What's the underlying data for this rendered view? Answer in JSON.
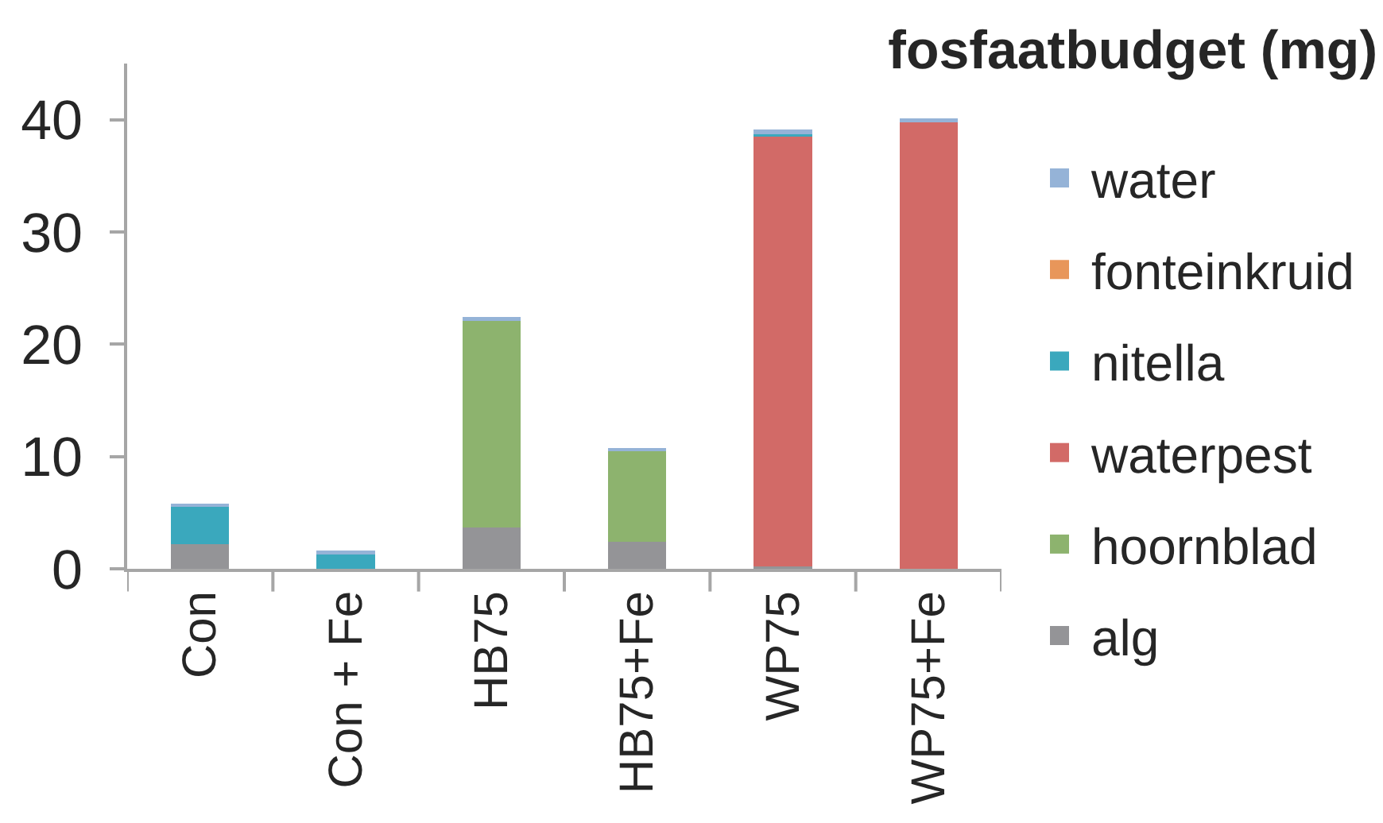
{
  "chart_data": {
    "type": "bar",
    "title": "fosfaatbudget (mg)",
    "categories": [
      "Con",
      "Con + Fe",
      "HB75",
      "HB75+Fe",
      "WP75",
      "WP75+Fe"
    ],
    "stacked": true,
    "series": [
      {
        "name": "alg",
        "color": "#949497",
        "values": [
          2.2,
          0,
          3.7,
          2.4,
          0.2,
          0
        ]
      },
      {
        "name": "hoornblad",
        "color": "#8db36e",
        "values": [
          0,
          0,
          18.4,
          8.1,
          0,
          0
        ]
      },
      {
        "name": "waterpest",
        "color": "#d26a67",
        "values": [
          0,
          0,
          0,
          0,
          38.3,
          39.9
        ]
      },
      {
        "name": "nitella",
        "color": "#3aa8bd",
        "values": [
          3.4,
          1.3,
          0,
          0,
          0.2,
          0
        ]
      },
      {
        "name": "fonteinkruid",
        "color": "#e8965a",
        "values": [
          0,
          0,
          0,
          0,
          0,
          0
        ]
      },
      {
        "name": "water",
        "color": "#95b3d7",
        "values": [
          0.2,
          0.3,
          0.3,
          0.2,
          0.4,
          0.2
        ]
      }
    ],
    "ylim": [
      0,
      45
    ],
    "yticks": [
      0,
      10,
      20,
      30,
      40
    ],
    "legend": "right",
    "grid": false
  }
}
